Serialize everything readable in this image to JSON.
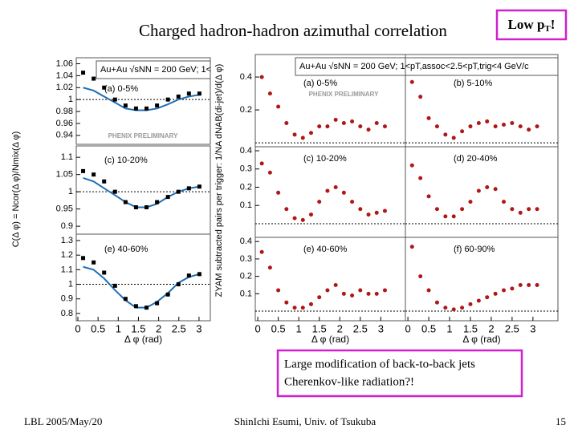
{
  "slide": {
    "title": "Charged hadron-hadron azimuthal correlation",
    "badge": [
      "Low p",
      "T",
      "!"
    ],
    "message": [
      "Large modification of back-to-back jets",
      "Cherenkov-like radiation?!"
    ],
    "footer": {
      "left": "LBL 2005/May/20",
      "center": "ShinIchi Esumi, Univ. of Tsukuba",
      "page": "15"
    }
  },
  "chart_data": [
    {
      "type": "scatter",
      "label": "(a) 0-5%",
      "header": "Au+Au √sNN = 200 GeV; 1<",
      "watermark": "PHENIX PRELIMINARY",
      "ylabel": "C(Δ φ) = Ncor(Δ φ)/Nmix(Δ φ)",
      "x": [
        0.13,
        0.39,
        0.65,
        0.92,
        1.18,
        1.44,
        1.7,
        1.96,
        2.23,
        2.49,
        2.75,
        3.01
      ],
      "series": [
        {
          "color": "#1f6fb5",
          "style": "line",
          "values": [
            1.02,
            1.015,
            1.005,
            0.995,
            0.985,
            0.982,
            0.982,
            0.985,
            0.992,
            1.0,
            1.005,
            1.008
          ]
        },
        {
          "color": "#000000",
          "style": "square",
          "values": [
            1.045,
            1.035,
            1.02,
            1.0,
            0.99,
            0.985,
            0.985,
            0.99,
            1.0,
            1.005,
            1.01,
            1.01
          ]
        }
      ],
      "baseline": 1,
      "xlim": [
        -0.04,
        3.28
      ],
      "ylim": [
        0.925,
        1.07
      ],
      "yticks": [
        0.94,
        0.96,
        0.98,
        1,
        1.02,
        1.04,
        1.06
      ]
    },
    {
      "type": "scatter",
      "label": "(c) 10-20%",
      "x": [
        0.13,
        0.39,
        0.65,
        0.92,
        1.18,
        1.44,
        1.7,
        1.96,
        2.23,
        2.49,
        2.75,
        3.01
      ],
      "series": [
        {
          "color": "#1f6fb5",
          "style": "line",
          "values": [
            1.04,
            1.03,
            1.01,
            0.99,
            0.97,
            0.955,
            0.955,
            0.965,
            0.985,
            1.0,
            1.01,
            1.015
          ]
        },
        {
          "color": "#000000",
          "style": "square",
          "values": [
            1.06,
            1.05,
            1.03,
            1.0,
            0.97,
            0.955,
            0.955,
            0.97,
            0.985,
            1.0,
            1.01,
            1.015
          ]
        }
      ],
      "baseline": 1,
      "xlim": [
        -0.04,
        3.28
      ],
      "ylim": [
        0.877,
        1.133
      ],
      "yticks": [
        0.9,
        0.95,
        1,
        1.05,
        1.1
      ]
    },
    {
      "type": "scatter",
      "label": "(e) 40-60%",
      "xlabel": "Δ φ (rad)",
      "x": [
        0.13,
        0.39,
        0.65,
        0.92,
        1.18,
        1.44,
        1.7,
        1.96,
        2.23,
        2.49,
        2.75,
        3.01
      ],
      "series": [
        {
          "color": "#1f6fb5",
          "style": "line",
          "values": [
            1.12,
            1.1,
            1.04,
            0.96,
            0.89,
            0.84,
            0.84,
            0.88,
            0.94,
            1.01,
            1.05,
            1.07
          ]
        },
        {
          "color": "#000000",
          "style": "square",
          "values": [
            1.18,
            1.15,
            1.08,
            0.99,
            0.9,
            0.85,
            0.84,
            0.87,
            0.93,
            1.0,
            1.06,
            1.07
          ]
        }
      ],
      "baseline": 1,
      "xlim": [
        -0.04,
        3.28
      ],
      "ylim": [
        0.75,
        1.344
      ],
      "yticks": [
        0.8,
        0.9,
        1,
        1.1,
        1.2,
        1.3
      ],
      "xticks": [
        0,
        0.5,
        1,
        1.5,
        2,
        2.5,
        3
      ]
    },
    {
      "type": "scatter",
      "label": "(a) 0-5%",
      "header": "Au+Au √sNN = 200 GeV; 1<pT,assoc<2.5<pT,trig<4 GeV/c",
      "watermark": "PHENIX PRELIMINARY",
      "ylabel": "ZYAM subtracted pairs per trigger: 1/NA dNAB(di-jet)/d(Δ φ)",
      "x": [
        0.1,
        0.3,
        0.5,
        0.7,
        0.9,
        1.1,
        1.3,
        1.5,
        1.7,
        1.9,
        2.1,
        2.3,
        2.5,
        2.7,
        2.9,
        3.1
      ],
      "series": [
        {
          "color": "#b01818",
          "style": "circle",
          "values": [
            0.4,
            0.3,
            0.22,
            0.12,
            0.05,
            0.03,
            0.06,
            0.1,
            0.1,
            0.14,
            0.12,
            0.13,
            0.1,
            0.08,
            0.12,
            0.1
          ]
        }
      ],
      "baseline": 0,
      "xlim": [
        -0.06,
        3.6
      ],
      "ylim": [
        -0.024,
        0.537
      ],
      "yticks": [
        0.2,
        0.4
      ]
    },
    {
      "type": "scatter",
      "label": "(b) 5-10%",
      "x": [
        0.1,
        0.3,
        0.5,
        0.7,
        0.9,
        1.1,
        1.3,
        1.5,
        1.7,
        1.9,
        2.1,
        2.3,
        2.5,
        2.7,
        2.9,
        3.1
      ],
      "series": [
        {
          "color": "#b01818",
          "style": "circle",
          "values": [
            0.37,
            0.28,
            0.15,
            0.1,
            0.05,
            0.03,
            0.07,
            0.1,
            0.12,
            0.13,
            0.1,
            0.11,
            0.12,
            0.1,
            0.08,
            0.1
          ]
        }
      ],
      "baseline": 0,
      "xlim": [
        -0.06,
        3.6
      ],
      "ylim": [
        -0.024,
        0.537
      ]
    },
    {
      "type": "scatter",
      "label": "(c) 10-20%",
      "x": [
        0.1,
        0.3,
        0.5,
        0.7,
        0.9,
        1.1,
        1.3,
        1.5,
        1.7,
        1.9,
        2.1,
        2.3,
        2.5,
        2.7,
        2.9,
        3.1
      ],
      "series": [
        {
          "color": "#b01818",
          "style": "circle",
          "values": [
            0.33,
            0.28,
            0.17,
            0.08,
            0.03,
            0.02,
            0.05,
            0.12,
            0.18,
            0.2,
            0.17,
            0.12,
            0.08,
            0.05,
            0.06,
            0.07
          ]
        }
      ],
      "baseline": 0,
      "xlim": [
        -0.06,
        3.6
      ],
      "ylim": [
        -0.075,
        0.422
      ],
      "yticks": [
        0.1,
        0.2,
        0.3,
        0.4
      ]
    },
    {
      "type": "scatter",
      "label": "(d) 20-40%",
      "x": [
        0.1,
        0.3,
        0.5,
        0.7,
        0.9,
        1.1,
        1.3,
        1.5,
        1.7,
        1.9,
        2.1,
        2.3,
        2.5,
        2.7,
        2.9,
        3.1
      ],
      "series": [
        {
          "color": "#b01818",
          "style": "circle",
          "values": [
            0.32,
            0.25,
            0.15,
            0.08,
            0.04,
            0.04,
            0.08,
            0.12,
            0.18,
            0.2,
            0.19,
            0.12,
            0.08,
            0.06,
            0.08,
            0.08
          ]
        }
      ],
      "baseline": 0,
      "xlim": [
        -0.06,
        3.6
      ],
      "ylim": [
        -0.075,
        0.422
      ]
    },
    {
      "type": "scatter",
      "label": "(e) 40-60%",
      "xlabel": "Δ φ (rad)",
      "x": [
        0.1,
        0.3,
        0.5,
        0.7,
        0.9,
        1.1,
        1.3,
        1.5,
        1.7,
        1.9,
        2.1,
        2.3,
        2.5,
        2.7,
        2.9,
        3.1
      ],
      "series": [
        {
          "color": "#b01818",
          "style": "circle",
          "values": [
            0.34,
            0.25,
            0.12,
            0.05,
            0.02,
            0.02,
            0.04,
            0.08,
            0.12,
            0.15,
            0.1,
            0.09,
            0.12,
            0.1,
            0.1,
            0.12
          ]
        }
      ],
      "baseline": 0,
      "xlim": [
        -0.06,
        3.6
      ],
      "ylim": [
        -0.055,
        0.424
      ],
      "yticks": [
        0.1,
        0.2,
        0.3,
        0.4
      ],
      "xticks": [
        0,
        0.5,
        1,
        1.5,
        2,
        2.5,
        3
      ]
    },
    {
      "type": "scatter",
      "label": "(f) 60-90%",
      "xlabel": "Δ φ (rad)",
      "x": [
        0.1,
        0.3,
        0.5,
        0.7,
        0.9,
        1.1,
        1.3,
        1.5,
        1.7,
        1.9,
        2.1,
        2.3,
        2.5,
        2.7,
        2.9,
        3.1
      ],
      "series": [
        {
          "color": "#b01818",
          "style": "circle",
          "values": [
            0.37,
            0.2,
            0.12,
            0.05,
            0.02,
            0.01,
            0.02,
            0.04,
            0.06,
            0.08,
            0.1,
            0.12,
            0.13,
            0.15,
            0.15,
            0.15
          ]
        }
      ],
      "baseline": 0,
      "xlim": [
        -0.06,
        3.6
      ],
      "ylim": [
        -0.055,
        0.424
      ],
      "xticks": [
        0,
        0.5,
        1,
        1.5,
        2,
        2.5,
        3
      ]
    }
  ]
}
